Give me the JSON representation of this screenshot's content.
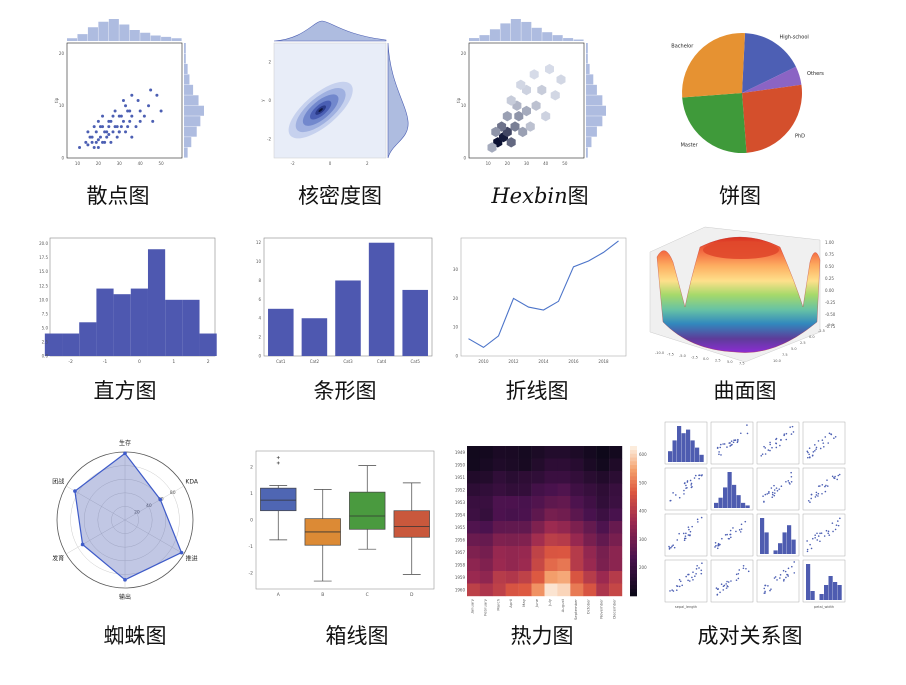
{
  "palette": {
    "primary": "#4c5fb3",
    "light": "#aebce0",
    "pale": "#e8edf8",
    "pie": [
      "#4d5fb4",
      "#e69232",
      "#3f9a3a",
      "#d44f2c",
      "#8b64c4"
    ],
    "box": [
      "#4f66b3",
      "#dc8a35",
      "#4a9a3f",
      "#c9583c"
    ]
  },
  "charts": [
    {
      "id": "scatter",
      "caption": "散点图"
    },
    {
      "id": "kde",
      "caption": "核密度图"
    },
    {
      "id": "hexbin",
      "caption_latin": "Hexbin",
      "caption": "图"
    },
    {
      "id": "pie",
      "caption": "饼图"
    },
    {
      "id": "histogram",
      "caption": "直方图"
    },
    {
      "id": "bar",
      "caption": "条形图"
    },
    {
      "id": "line",
      "caption": "折线图"
    },
    {
      "id": "surface",
      "caption": "曲面图"
    },
    {
      "id": "radar",
      "caption": "蜘蛛图"
    },
    {
      "id": "box",
      "caption": "箱线图"
    },
    {
      "id": "heatmap",
      "caption": "热力图"
    },
    {
      "id": "pair",
      "caption": "成对关系图"
    }
  ],
  "chart_data": [
    {
      "type": "scatter",
      "x": [
        11,
        14,
        15,
        16,
        17,
        18,
        19,
        20,
        21,
        22,
        23,
        24,
        25,
        26,
        27,
        28,
        29,
        30,
        31,
        32,
        33,
        34,
        35,
        36,
        38,
        40,
        42,
        44,
        46,
        48,
        50,
        15,
        18,
        20,
        22,
        24,
        26,
        28,
        30,
        32,
        34,
        36,
        20,
        22,
        25,
        27,
        30,
        33,
        36,
        40,
        45,
        17,
        19,
        21,
        23,
        25,
        29,
        31,
        35,
        39
      ],
      "y": [
        2,
        3,
        2.5,
        4,
        3,
        2,
        5,
        3.5,
        4,
        6,
        3,
        5,
        4.5,
        7,
        5,
        6,
        4,
        8,
        6,
        7,
        5,
        9,
        7,
        8,
        6,
        9,
        8,
        10,
        7,
        12,
        9,
        5,
        6,
        2,
        8,
        4,
        3,
        9,
        5,
        11,
        6,
        4,
        7,
        3,
        6,
        8,
        5,
        10,
        12,
        7,
        13,
        4,
        3,
        6,
        5,
        7,
        6,
        8,
        9,
        11
      ],
      "xlim": [
        5,
        60
      ],
      "ylim": [
        0,
        22
      ],
      "xticks": [
        10,
        20,
        30,
        40,
        50
      ],
      "yticks": [
        0,
        10,
        20
      ],
      "ylabel": "tip",
      "hist_x": [
        2,
        5,
        10,
        14,
        16,
        12,
        8,
        6,
        4,
        3,
        2
      ],
      "hist_y": [
        2,
        4,
        7,
        9,
        11,
        8,
        5,
        3,
        2,
        1,
        1
      ]
    },
    {
      "type": "kde",
      "xlim": [
        -3,
        3
      ],
      "ylim": [
        -3,
        3
      ],
      "ylabel": "y",
      "xticks": [
        -2,
        0,
        2
      ],
      "yticks": [
        -2,
        0,
        2
      ],
      "levels": [
        0.9,
        0.7,
        0.5,
        0.3,
        0.15,
        0.06
      ],
      "center": [
        -0.5,
        -0.5
      ]
    },
    {
      "type": "hexbin",
      "xlim": [
        0,
        60
      ],
      "ylim": [
        0,
        22
      ],
      "ylabel": "tip",
      "xticks": [
        10,
        20,
        30,
        40,
        50
      ],
      "yticks": [
        0,
        10,
        20
      ],
      "bins": [
        [
          15,
          3,
          1.0
        ],
        [
          18,
          4,
          0.95
        ],
        [
          20,
          5,
          0.75
        ],
        [
          22,
          3,
          0.6
        ],
        [
          17,
          6,
          0.55
        ],
        [
          24,
          6,
          0.5
        ],
        [
          26,
          8,
          0.4
        ],
        [
          20,
          8,
          0.35
        ],
        [
          14,
          5,
          0.4
        ],
        [
          28,
          5,
          0.35
        ],
        [
          30,
          9,
          0.3
        ],
        [
          25,
          10,
          0.25
        ],
        [
          32,
          6,
          0.2
        ],
        [
          35,
          10,
          0.2
        ],
        [
          38,
          13,
          0.15
        ],
        [
          22,
          11,
          0.15
        ],
        [
          40,
          8,
          0.12
        ],
        [
          30,
          13,
          0.12
        ],
        [
          45,
          12,
          0.1
        ],
        [
          48,
          15,
          0.1
        ],
        [
          12,
          2,
          0.3
        ],
        [
          34,
          16,
          0.08
        ],
        [
          42,
          17,
          0.08
        ],
        [
          27,
          14,
          0.1
        ]
      ],
      "hist_x": [
        2,
        4,
        8,
        12,
        15,
        13,
        9,
        6,
        4,
        2,
        1
      ],
      "hist_y": [
        1,
        3,
        6,
        9,
        11,
        9,
        6,
        4,
        2,
        1,
        1
      ]
    },
    {
      "type": "pie",
      "labels": [
        "High-school",
        "Others",
        "PhD",
        "Master",
        "Bachelor"
      ],
      "values": [
        17,
        5,
        26,
        25,
        27
      ]
    },
    {
      "type": "histogram",
      "bins": [
        -2.5,
        -2,
        -1.5,
        -1,
        -0.5,
        0,
        0.5,
        1,
        1.5,
        2
      ],
      "values": [
        4,
        4,
        6,
        12,
        11,
        12,
        19,
        10,
        10,
        4
      ],
      "xticks": [
        -2,
        -1,
        0,
        1,
        2
      ],
      "yticks": [
        0.0,
        2.5,
        5.0,
        7.5,
        10.0,
        12.5,
        15.0,
        17.5,
        20.0
      ],
      "ylim": [
        0,
        21
      ]
    },
    {
      "type": "bar",
      "categories": [
        "Cat1",
        "Cat2",
        "Cat3",
        "Cat4",
        "Cat5"
      ],
      "values": [
        5,
        4,
        8,
        12,
        7
      ],
      "yticks": [
        0,
        2,
        4,
        6,
        8,
        10,
        12
      ],
      "ylim": [
        0,
        12.5
      ]
    },
    {
      "type": "line",
      "x": [
        2009,
        2010,
        2011,
        2012,
        2013,
        2014,
        2015,
        2016,
        2017,
        2018,
        2019
      ],
      "y": [
        6,
        3,
        7,
        20,
        17,
        16,
        19,
        31,
        33,
        36,
        40
      ],
      "xticks": [
        2010,
        2012,
        2014,
        2016,
        2018
      ],
      "yticks": [
        0,
        10,
        20,
        30
      ],
      "ylim": [
        0,
        41
      ]
    },
    {
      "type": "surface",
      "zticks": [
        "1.00",
        "0.75",
        "0.50",
        "0.25",
        "0.00",
        "-0.25",
        "-0.50",
        "-0.75"
      ],
      "xticks": [
        "-10.0",
        "-7.5",
        "-5.0",
        "-2.5",
        "0.0",
        "2.5",
        "5.0",
        "7.5"
      ],
      "yticks": [
        "10.0",
        "7.5",
        "5.0",
        "2.5",
        "0.0",
        "-2.5",
        "-5.0"
      ]
    },
    {
      "type": "radar",
      "axes": [
        "生存",
        "KDA",
        "推进",
        "输出",
        "发育",
        "团战"
      ],
      "values": [
        98,
        60,
        96,
        88,
        72,
        85
      ],
      "rticks": [
        20,
        40,
        60,
        80,
        100
      ]
    },
    {
      "type": "box",
      "categories": [
        "A",
        "B",
        "C",
        "D"
      ],
      "yticks": [
        -2,
        -1,
        0,
        1,
        2
      ],
      "ylim": [
        -2.6,
        2.6
      ],
      "stats": [
        {
          "min": -0.75,
          "q1": 0.35,
          "median": 0.75,
          "q3": 1.2,
          "max": 1.3,
          "outliers": [
            2.15,
            2.35
          ]
        },
        {
          "min": -2.3,
          "q1": -0.95,
          "median": -0.45,
          "q3": 0.05,
          "max": 1.15,
          "outliers": []
        },
        {
          "min": -1.1,
          "q1": -0.35,
          "median": 0.15,
          "q3": 1.05,
          "max": 2.05,
          "outliers": []
        },
        {
          "min": -2.05,
          "q1": -0.65,
          "median": -0.25,
          "q3": 0.35,
          "max": 1.4,
          "outliers": []
        }
      ]
    },
    {
      "type": "heatmap",
      "rows": [
        "1949",
        "1950",
        "1951",
        "1952",
        "1953",
        "1954",
        "1955",
        "1956",
        "1957",
        "1958",
        "1959",
        "1960"
      ],
      "columns": [
        "January",
        "February",
        "March",
        "April",
        "May",
        "June",
        "July",
        "August",
        "September",
        "October",
        "November",
        "December"
      ],
      "values": [
        [
          112,
          118,
          132,
          129,
          121,
          135,
          148,
          148,
          136,
          119,
          104,
          118
        ],
        [
          115,
          126,
          141,
          135,
          125,
          149,
          170,
          170,
          158,
          133,
          114,
          140
        ],
        [
          145,
          150,
          178,
          163,
          172,
          178,
          199,
          199,
          184,
          162,
          146,
          166
        ],
        [
          171,
          180,
          193,
          181,
          183,
          218,
          230,
          242,
          209,
          191,
          172,
          194
        ],
        [
          196,
          196,
          236,
          235,
          229,
          243,
          264,
          272,
          237,
          211,
          180,
          201
        ],
        [
          204,
          188,
          235,
          227,
          234,
          264,
          302,
          293,
          259,
          229,
          203,
          229
        ],
        [
          242,
          233,
          267,
          269,
          270,
          315,
          364,
          347,
          312,
          274,
          237,
          278
        ],
        [
          284,
          277,
          317,
          313,
          318,
          374,
          413,
          405,
          355,
          306,
          271,
          306
        ],
        [
          315,
          301,
          356,
          348,
          355,
          422,
          465,
          467,
          404,
          347,
          305,
          336
        ],
        [
          340,
          318,
          362,
          348,
          363,
          435,
          491,
          505,
          404,
          359,
          310,
          337
        ],
        [
          360,
          342,
          406,
          396,
          420,
          472,
          548,
          559,
          463,
          407,
          362,
          405
        ],
        [
          417,
          391,
          419,
          461,
          472,
          535,
          622,
          606,
          508,
          461,
          390,
          432
        ]
      ],
      "colorbar_ticks": [
        200,
        300,
        400,
        500,
        600
      ],
      "vmin": 100,
      "vmax": 630
    },
    {
      "type": "pair",
      "variables": [
        "sepal_length",
        "sepal_width",
        "petal_length",
        "petal_width"
      ],
      "diag_hists": [
        [
          3,
          6,
          10,
          8,
          9,
          6,
          4,
          2
        ],
        [
          2,
          4,
          8,
          14,
          9,
          5,
          2,
          1
        ],
        [
          10,
          6,
          0,
          1,
          3,
          6,
          8,
          4
        ],
        [
          12,
          3,
          0,
          2,
          5,
          8,
          6,
          5
        ]
      ]
    }
  ]
}
